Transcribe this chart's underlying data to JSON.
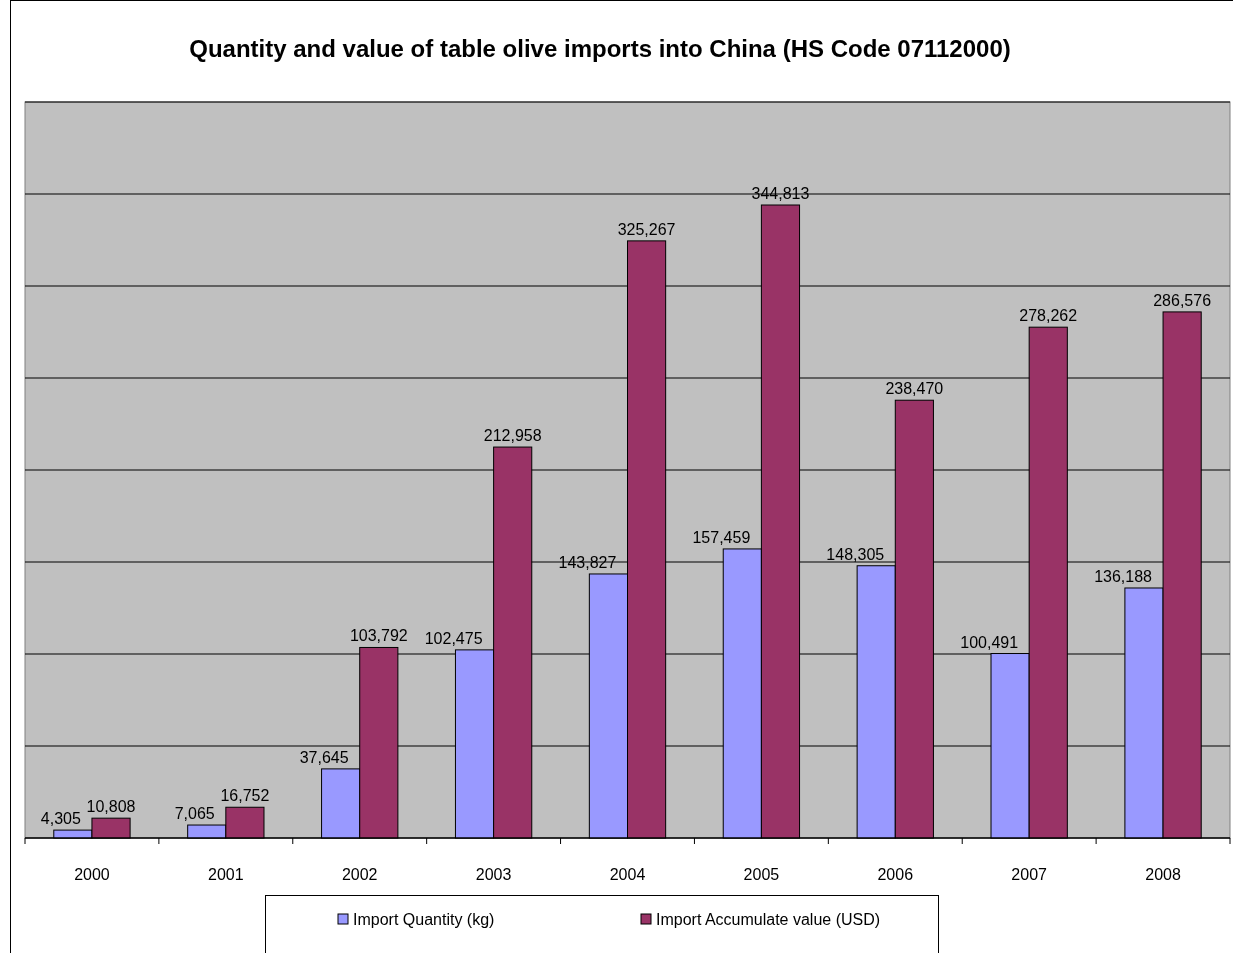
{
  "chart_data": {
    "type": "bar",
    "title": "Quantity and value of table olive imports into China (HS Code 07112000)",
    "categories": [
      "2000",
      "2001",
      "2002",
      "2003",
      "2004",
      "2005",
      "2006",
      "2007",
      "2008"
    ],
    "series": [
      {
        "name": "Import Quantity (kg)",
        "color": "#9999ff",
        "values": [
          4305,
          7065,
          37645,
          102475,
          143827,
          157459,
          148305,
          100491,
          136188
        ],
        "value_labels": [
          "4,305",
          "7,065",
          "37,645",
          "102,475",
          "143,827",
          "157,459",
          "148,305",
          "100,491",
          "136,188"
        ]
      },
      {
        "name": "Import Accumulate value (USD)",
        "color": "#993366",
        "values": [
          10808,
          16752,
          103792,
          212958,
          325267,
          344813,
          238470,
          278262,
          286576
        ],
        "value_labels": [
          "10,808",
          "16,752",
          "103,792",
          "212,958",
          "325,267",
          "344,813",
          "238,470",
          "278,262",
          "286,576"
        ]
      }
    ],
    "tick_labels": "x",
    "grid": "y",
    "legend": "bottom"
  }
}
